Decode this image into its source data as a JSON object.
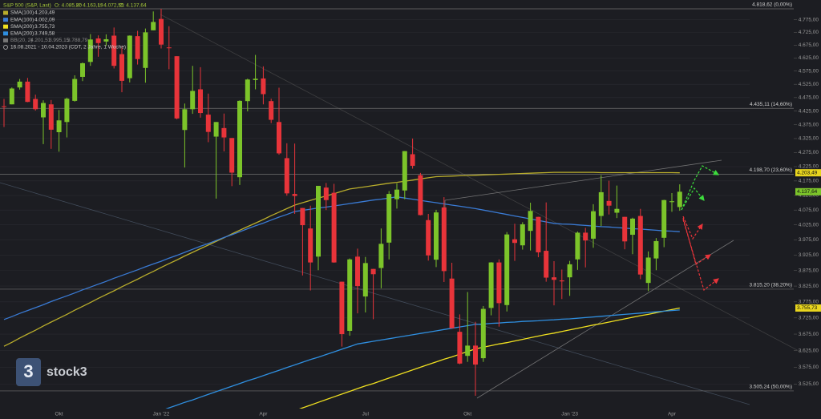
{
  "chart_data": {
    "type": "candlestick",
    "header": {
      "title": "S&P 500 (S&P, Last)",
      "ohlc_labels": [
        "O: 4.085,20",
        "H: 4.163,19",
        "L: 4.072,55",
        "C: 4.137,64"
      ],
      "bb": {
        "name": "BB(20, 2)",
        "labels": [
          "4.201,51",
          "3.995,15",
          "3.788,79"
        ]
      },
      "range": "16.08.2021 - 10.04.2023 (CDT, 2 Jahre, 1 Woche)"
    },
    "watermark": {
      "icon": "3",
      "text": "stock3"
    },
    "log_scale": true,
    "grid": true,
    "up_color": "#7cc42a",
    "down_color": "#e8343a",
    "ylim": [
      3454,
      4854
    ],
    "yticks": [
      {
        "value": 3525,
        "label": "3.525,00"
      },
      {
        "value": 3575,
        "label": "3.575,00"
      },
      {
        "value": 3625,
        "label": "3.625,00"
      },
      {
        "value": 3675,
        "label": "3.675,00"
      },
      {
        "value": 3725,
        "label": "3.725,00"
      },
      {
        "value": 3775,
        "label": "3.775,00"
      },
      {
        "value": 3825,
        "label": "3.825,00"
      },
      {
        "value": 3875,
        "label": "3.875,00"
      },
      {
        "value": 3925,
        "label": "3.925,00"
      },
      {
        "value": 3975,
        "label": "3.975,00"
      },
      {
        "value": 4025,
        "label": "4.025,00"
      },
      {
        "value": 4075,
        "label": "4.075,00"
      },
      {
        "value": 4125,
        "label": "4.125,00"
      },
      {
        "value": 4175,
        "label": "4.175,00"
      },
      {
        "value": 4225,
        "label": "4.225,00"
      },
      {
        "value": 4275,
        "label": "4.275,00"
      },
      {
        "value": 4325,
        "label": "4.325,00"
      },
      {
        "value": 4375,
        "label": "4.375,00"
      },
      {
        "value": 4425,
        "label": "4.425,00"
      },
      {
        "value": 4475,
        "label": "4.475,00"
      },
      {
        "value": 4525,
        "label": "4.525,00"
      },
      {
        "value": 4575,
        "label": "4.575,00"
      },
      {
        "value": 4625,
        "label": "4.625,00"
      },
      {
        "value": 4675,
        "label": "4.675,00"
      },
      {
        "value": 4725,
        "label": "4.725,00"
      },
      {
        "value": 4775,
        "label": "4.775,00"
      }
    ],
    "levels": [
      {
        "value": 4818.62,
        "label": "4.818,62 (0,00%)"
      },
      {
        "value": 4435.11,
        "label": "4.435,11 (14,60%)"
      },
      {
        "value": 4198.7,
        "label": "4.198,70 (23,60%)"
      },
      {
        "value": 3815.2,
        "label": "3.815,20 (38,20%)"
      },
      {
        "value": 3505.24,
        "label": "3.505,24 (50,00%)"
      }
    ],
    "price_tags": [
      {
        "value": 4203.49,
        "label": "4.203,49",
        "color": "#e8d51e"
      },
      {
        "value": 4137.64,
        "label": "4.137,64",
        "color": "#7cc42a"
      },
      {
        "value": 3755.73,
        "label": "3.755,73",
        "color": "#e8d51e"
      }
    ],
    "categories": [
      null,
      null,
      null,
      null,
      null,
      null,
      null,
      "Okt",
      null,
      null,
      null,
      null,
      null,
      null,
      null,
      null,
      null,
      null,
      null,
      null,
      "Jan '22",
      null,
      null,
      null,
      null,
      null,
      null,
      null,
      null,
      null,
      null,
      null,
      null,
      "Apr",
      null,
      null,
      null,
      null,
      null,
      null,
      null,
      null,
      null,
      null,
      null,
      null,
      "Jul",
      null,
      null,
      null,
      null,
      null,
      null,
      null,
      null,
      null,
      null,
      null,
      null,
      "Okt",
      null,
      null,
      null,
      null,
      null,
      null,
      null,
      null,
      null,
      null,
      null,
      null,
      "Jan '23",
      null,
      null,
      null,
      null,
      null,
      null,
      null,
      null,
      null,
      null,
      null,
      null,
      "Apr",
      null
    ],
    "open": [
      4443,
      4450,
      4513,
      4535,
      4470,
      4402,
      4450,
      4348,
      4385,
      4463,
      4553,
      4610,
      4701,
      4689,
      4712,
      4640,
      4548,
      4710,
      4587,
      4733,
      4778,
      4666,
      4632,
      4356,
      4432,
      4506,
      4412,
      4332,
      4363,
      4327,
      4188,
      4462,
      4541,
      4547,
      4462,
      4385,
      4255,
      4130,
      4082,
      4013,
      3920,
      4152,
      4134,
      3839,
      3685,
      3920,
      3792,
      3880,
      3883,
      3966,
      4112,
      4142,
      4269,
      4195,
      4041,
      3910,
      4084,
      3849,
      3682,
      3609,
      3640,
      3602,
      3756,
      3901,
      3765,
      3977,
      3957,
      4005,
      4052,
      3939,
      3853,
      3843,
      3853,
      3911,
      3999,
      3979,
      4055,
      4106,
      4066,
      4052,
      3992,
      4055,
      3835,
      3914,
      3982,
      4102,
      4085.2
    ],
    "high": [
      4470,
      4513,
      4545,
      4549,
      4486,
      4465,
      4466,
      4429,
      4475,
      4559,
      4608,
      4718,
      4713,
      4717,
      4744,
      4672,
      4713,
      4731,
      4740,
      4808,
      4818.62,
      4749,
      4632,
      4453,
      4595,
      4590,
      4490,
      4385,
      4416,
      4327,
      4465,
      4546,
      4637,
      4593,
      4471,
      4512,
      4308,
      4307,
      4082,
      4090,
      4158,
      4168,
      4165,
      3839,
      3914,
      3946,
      3919,
      3880,
      4013,
      4140,
      4167,
      4280,
      4325,
      4203,
      4062,
      4076,
      4119,
      3900,
      3736,
      3806,
      3713,
      3762,
      3902,
      3911,
      4001,
      4029,
      4034,
      4100,
      4052,
      4101,
      3905,
      3878,
      3906,
      4003,
      4015,
      4095,
      4195,
      4176,
      4159,
      4052,
      4049,
      4079,
      3937,
      3981,
      4110,
      4133,
      4163.19
    ],
    "low": [
      4367,
      4450,
      4505,
      4458,
      4427,
      4305,
      4288,
      4278,
      4329,
      4460,
      4537,
      4595,
      4630,
      4672,
      4585,
      4495,
      4532,
      4600,
      4531,
      4733,
      4662,
      4582,
      4395,
      4222,
      4415,
      4401,
      4312,
      4114,
      4279,
      4157,
      4161,
      4424,
      4506,
      4450,
      4381,
      4267,
      4124,
      4062,
      3859,
      3811,
      3876,
      4075,
      3900,
      3637,
      3670,
      3739,
      3742,
      3721,
      3818,
      3911,
      4080,
      4112,
      4218,
      4057,
      3907,
      3886,
      3838,
      3694,
      3584,
      3591,
      3491,
      3591,
      3733,
      3698,
      3745,
      3906,
      3943,
      3940,
      3918,
      3839,
      3764,
      3784,
      3794,
      3877,
      3885,
      3949,
      4021,
      4060,
      4048,
      3944,
      3928,
      3847,
      3809,
      3876,
      3951,
      4069,
      4072.55
    ],
    "close": [
      4441,
      4509,
      4535,
      4459,
      4432,
      4455,
      4357,
      4391,
      4471,
      4545,
      4605,
      4697,
      4683,
      4698,
      4595,
      4538,
      4712,
      4621,
      4725,
      4766,
      4677,
      4663,
      4398,
      4432,
      4500,
      4418,
      4349,
      4385,
      4329,
      4204,
      4463,
      4543,
      4546,
      4488,
      4393,
      4272,
      4132,
      4123,
      4024,
      3901,
      4158,
      4109,
      3901,
      3675,
      3911,
      3825,
      3899,
      3863,
      3962,
      4130,
      4145,
      4280,
      4228,
      4058,
      3924,
      4067,
      3873,
      3693,
      3586,
      3640,
      3583,
      3753,
      3901,
      3771,
      3993,
      3965,
      4027,
      4072,
      3934,
      3852,
      3845,
      3840,
      3895,
      3999,
      3973,
      4071,
      4136,
      4090,
      4079,
      3970,
      4046,
      3862,
      3917,
      3971,
      4109,
      4105,
      4137.64
    ],
    "overlays": [
      {
        "name": "SMA(100)",
        "last_label": "4.203,49",
        "color": "#b9ad2c",
        "values": [
          3638,
          3650,
          3663,
          3675,
          3687,
          3700,
          3712,
          3724,
          3736,
          3749,
          3761,
          3773,
          3786,
          3798,
          3810,
          3823,
          3835,
          3847,
          3860,
          3872,
          3885,
          3897,
          3909,
          3922,
          3934,
          3946,
          3958,
          3970,
          3982,
          3995,
          4007,
          4019,
          4031,
          4043,
          4056,
          4068,
          4080,
          4092,
          4100,
          4108,
          4116,
          4123,
          4131,
          4139,
          4147,
          4151,
          4155,
          4159,
          4163,
          4167,
          4170,
          4174,
          4178,
          4182,
          4186,
          4190,
          4191,
          4192,
          4193,
          4194,
          4195,
          4196,
          4197,
          4198,
          4199,
          4200,
          4201,
          4202,
          4203,
          4204,
          4205,
          4205,
          4205,
          4205,
          4205,
          4205,
          4204,
          4204,
          4204,
          4204,
          4204,
          4204,
          4204,
          4204,
          4204,
          4204,
          4203.49
        ]
      },
      {
        "name": "EMA(100)",
        "last_label": "4.002,09",
        "color": "#3a7bd5",
        "values": [
          3720,
          3729,
          3739,
          3748,
          3757,
          3766,
          3776,
          3785,
          3794,
          3803,
          3813,
          3822,
          3831,
          3840,
          3850,
          3859,
          3868,
          3877,
          3887,
          3896,
          3905,
          3915,
          3924,
          3934,
          3944,
          3954,
          3963,
          3973,
          3983,
          3992,
          4002,
          4012,
          4022,
          4031,
          4041,
          4051,
          4060,
          4070,
          4074,
          4078,
          4082,
          4085,
          4089,
          4093,
          4097,
          4101,
          4105,
          4109,
          4112,
          4116,
          4120,
          4116,
          4112,
          4108,
          4104,
          4100,
          4096,
          4092,
          4088,
          4084,
          4080,
          4075,
          4070,
          4065,
          4060,
          4055,
          4050,
          4045,
          4040,
          4035,
          4030,
          4028,
          4027,
          4025,
          4023,
          4021,
          4019,
          4018,
          4016,
          4014,
          4012,
          4011,
          4009,
          4007,
          4005,
          4004,
          4002.09
        ]
      },
      {
        "name": "SMA(200)",
        "last_label": "3.755,73",
        "color": "#f0e020",
        "values": [
          null,
          null,
          null,
          null,
          null,
          null,
          null,
          null,
          null,
          null,
          null,
          null,
          null,
          null,
          null,
          null,
          null,
          null,
          null,
          null,
          null,
          null,
          null,
          null,
          null,
          null,
          null,
          null,
          null,
          null,
          null,
          null,
          3409,
          3417,
          3425,
          3433,
          3441,
          3448,
          3456,
          3464,
          3472,
          3480,
          3488,
          3496,
          3504,
          3512,
          3520,
          3527,
          3535,
          3543,
          3551,
          3559,
          3567,
          3575,
          3583,
          3591,
          3599,
          3606,
          3614,
          3622,
          3630,
          3635,
          3640,
          3645,
          3649,
          3654,
          3659,
          3664,
          3669,
          3674,
          3678,
          3683,
          3688,
          3693,
          3698,
          3703,
          3707,
          3712,
          3717,
          3722,
          3727,
          3732,
          3736,
          3741,
          3746,
          3751,
          3755.73
        ]
      },
      {
        "name": "EMA(200)",
        "last_label": "3.749,58",
        "color": "#2f8fe0",
        "values": [
          null,
          null,
          null,
          null,
          null,
          null,
          null,
          null,
          null,
          null,
          null,
          null,
          null,
          null,
          null,
          null,
          null,
          null,
          null,
          3440,
          3448,
          3456,
          3464,
          3472,
          3479,
          3487,
          3495,
          3503,
          3511,
          3519,
          3527,
          3535,
          3542,
          3550,
          3558,
          3566,
          3574,
          3582,
          3590,
          3598,
          3605,
          3613,
          3621,
          3629,
          3637,
          3645,
          3649,
          3653,
          3657,
          3661,
          3665,
          3669,
          3673,
          3677,
          3681,
          3685,
          3689,
          3693,
          3697,
          3701,
          3705,
          3706,
          3708,
          3709,
          3711,
          3712,
          3714,
          3715,
          3716,
          3718,
          3719,
          3721,
          3722,
          3724,
          3726,
          3728,
          3730,
          3732,
          3734,
          3736,
          3738,
          3740,
          3742,
          3744,
          3746,
          3748,
          3749.58
        ]
      }
    ]
  }
}
